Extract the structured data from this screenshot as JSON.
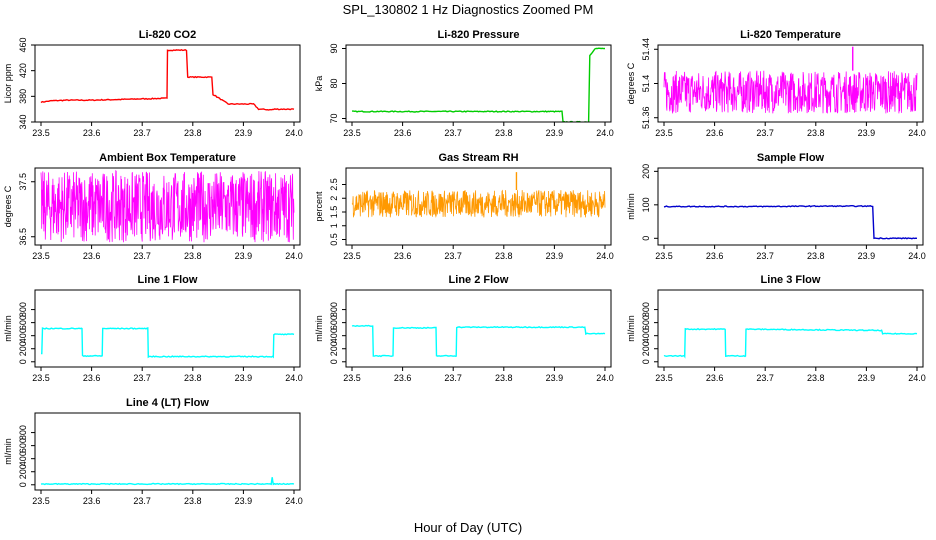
{
  "figure": {
    "title": "SPL_130802  1 Hz Diagnostics Zoomed PM",
    "xlabel": "Hour of Day (UTC)"
  },
  "chart_data": [
    {
      "type": "line",
      "title": "Li-820 CO2",
      "ylabel": "Licor ppm",
      "color": "#ff0000",
      "xlim": [
        23.5,
        24.0
      ],
      "ylim": [
        340,
        460
      ],
      "xticks": [
        "23.5",
        "23.6",
        "23.7",
        "23.8",
        "23.9",
        "24.0"
      ],
      "yticks": [
        340,
        380,
        420,
        460
      ],
      "series": [
        {
          "x": [
            23.5,
            23.52,
            23.55,
            23.6,
            23.65,
            23.7,
            23.748,
            23.75,
            23.79,
            23.84,
            23.87,
            23.92,
            23.93,
            23.955,
            23.962,
            23.97,
            24.0
          ],
          "y": [
            371,
            373,
            374,
            374,
            375,
            376,
            377,
            452,
            410,
            383,
            368,
            368,
            360,
            359,
            360,
            360,
            360
          ]
        }
      ]
    },
    {
      "type": "line",
      "title": "Li-820 Pressure",
      "ylabel": "kPa",
      "color": "#00cc00",
      "xlim": [
        23.5,
        24.0
      ],
      "ylim": [
        69,
        91
      ],
      "xticks": [
        "23.5",
        "23.6",
        "23.7",
        "23.8",
        "23.9",
        "24.0"
      ],
      "yticks": [
        70,
        80,
        90
      ],
      "series": [
        {
          "x": [
            23.5,
            23.6,
            23.7,
            23.8,
            23.9,
            23.915,
            23.917,
            23.96,
            23.97,
            23.98,
            24.0
          ],
          "y": [
            72,
            72,
            72,
            72,
            72,
            72,
            69,
            69,
            88,
            90,
            90
          ]
        }
      ]
    },
    {
      "type": "line",
      "title": "Li-820 Temperature",
      "ylabel": "degrees C",
      "color": "#ff00ff",
      "xlim": [
        23.5,
        24.0
      ],
      "ylim": [
        51.355,
        51.445
      ],
      "xticks": [
        "23.5",
        "23.6",
        "23.7",
        "23.8",
        "23.9",
        "24.0"
      ],
      "yticks": [
        51.36,
        51.4,
        51.44
      ],
      "series": [
        {
          "x": [
            23.5,
            24.0
          ],
          "y_low": 51.365,
          "y_high": 51.415,
          "spike": [
            23.873,
            51.443
          ]
        }
      ]
    },
    {
      "type": "line",
      "title": "Ambient Box Temperature",
      "ylabel": "degrees C",
      "color": "#ff00ff",
      "xlim": [
        23.5,
        24.0
      ],
      "ylim": [
        36.35,
        37.75
      ],
      "xticks": [
        "23.5",
        "23.6",
        "23.7",
        "23.8",
        "23.9",
        "24.0"
      ],
      "yticks": [
        36.5,
        37.5
      ],
      "series": [
        {
          "x": [
            23.5,
            24.0
          ],
          "y_low": 36.4,
          "y_high": 37.7
        }
      ]
    },
    {
      "type": "line",
      "title": "Gas Stream RH",
      "ylabel": "percent",
      "color": "#ff9900",
      "xlim": [
        23.5,
        24.0
      ],
      "ylim": [
        0.3,
        3.1
      ],
      "xticks": [
        "23.5",
        "23.6",
        "23.7",
        "23.8",
        "23.9",
        "24.0"
      ],
      "yticks": [
        0.5,
        1.0,
        1.5,
        2.0,
        2.5
      ],
      "series": [
        {
          "x": [
            23.5,
            24.0
          ],
          "y_low": 1.3,
          "y_high": 2.3,
          "spike": [
            23.825,
            2.95
          ]
        }
      ]
    },
    {
      "type": "line",
      "title": "Sample Flow",
      "ylabel": "ml/min",
      "color": "#0000cc",
      "xlim": [
        23.5,
        24.0
      ],
      "ylim": [
        -20,
        210
      ],
      "xticks": [
        "23.5",
        "23.6",
        "23.7",
        "23.8",
        "23.9",
        "24.0"
      ],
      "yticks": [
        0,
        100,
        200
      ],
      "series": [
        {
          "x": [
            23.5,
            23.6,
            23.7,
            23.8,
            23.91,
            23.915,
            23.93,
            24.0
          ],
          "y": [
            95,
            95,
            95,
            96,
            96,
            0,
            0,
            0
          ]
        }
      ]
    },
    {
      "type": "line",
      "title": "Line 1 Flow",
      "ylabel": "ml/min",
      "color": "#00ffff",
      "xlim": [
        23.5,
        24.0
      ],
      "ylim": [
        -80,
        1100
      ],
      "xticks": [
        "23.5",
        "23.6",
        "23.7",
        "23.8",
        "23.9",
        "24.0"
      ],
      "yticks": [
        0,
        200,
        400,
        600,
        800
      ],
      "series": [
        {
          "x": [
            23.5,
            23.503,
            23.58,
            23.582,
            23.62,
            23.622,
            23.71,
            23.712,
            23.958,
            23.96,
            24.0
          ],
          "y": [
            120,
            510,
            510,
            90,
            90,
            510,
            510,
            80,
            80,
            420,
            420
          ]
        }
      ]
    },
    {
      "type": "line",
      "title": "Line 2 Flow",
      "ylabel": "ml/min",
      "color": "#00ffff",
      "xlim": [
        23.5,
        24.0
      ],
      "ylim": [
        -80,
        1100
      ],
      "xticks": [
        "23.5",
        "23.6",
        "23.7",
        "23.8",
        "23.9",
        "24.0"
      ],
      "yticks": [
        0,
        200,
        400,
        600,
        800
      ],
      "series": [
        {
          "x": [
            23.5,
            23.54,
            23.542,
            23.58,
            23.582,
            23.665,
            23.667,
            23.705,
            23.707,
            23.96,
            23.962,
            24.0
          ],
          "y": [
            550,
            550,
            90,
            90,
            520,
            520,
            90,
            90,
            530,
            530,
            430,
            430
          ]
        }
      ]
    },
    {
      "type": "line",
      "title": "Line 3 Flow",
      "ylabel": "ml/min",
      "color": "#00ffff",
      "xlim": [
        23.5,
        24.0
      ],
      "ylim": [
        -80,
        1100
      ],
      "xticks": [
        "23.5",
        "23.6",
        "23.7",
        "23.8",
        "23.9",
        "24.0"
      ],
      "yticks": [
        0,
        200,
        400,
        600,
        800
      ],
      "series": [
        {
          "x": [
            23.5,
            23.502,
            23.54,
            23.542,
            23.62,
            23.622,
            23.66,
            23.662,
            23.93,
            23.932,
            24.0
          ],
          "y": [
            90,
            90,
            90,
            500,
            500,
            90,
            90,
            500,
            480,
            430,
            430
          ]
        }
      ]
    },
    {
      "type": "line",
      "title": "Line 4 (LT) Flow",
      "ylabel": "ml/min",
      "color": "#00ffff",
      "xlim": [
        23.5,
        24.0
      ],
      "ylim": [
        -80,
        1100
      ],
      "xticks": [
        "23.5",
        "23.6",
        "23.7",
        "23.8",
        "23.9",
        "24.0"
      ],
      "yticks": [
        0,
        200,
        400,
        600,
        800
      ],
      "series": [
        {
          "x": [
            23.5,
            23.6,
            23.7,
            23.8,
            23.9,
            23.955,
            23.957,
            23.959,
            24.0
          ],
          "y": [
            12,
            12,
            12,
            12,
            12,
            12,
            110,
            12,
            12
          ]
        }
      ]
    }
  ]
}
